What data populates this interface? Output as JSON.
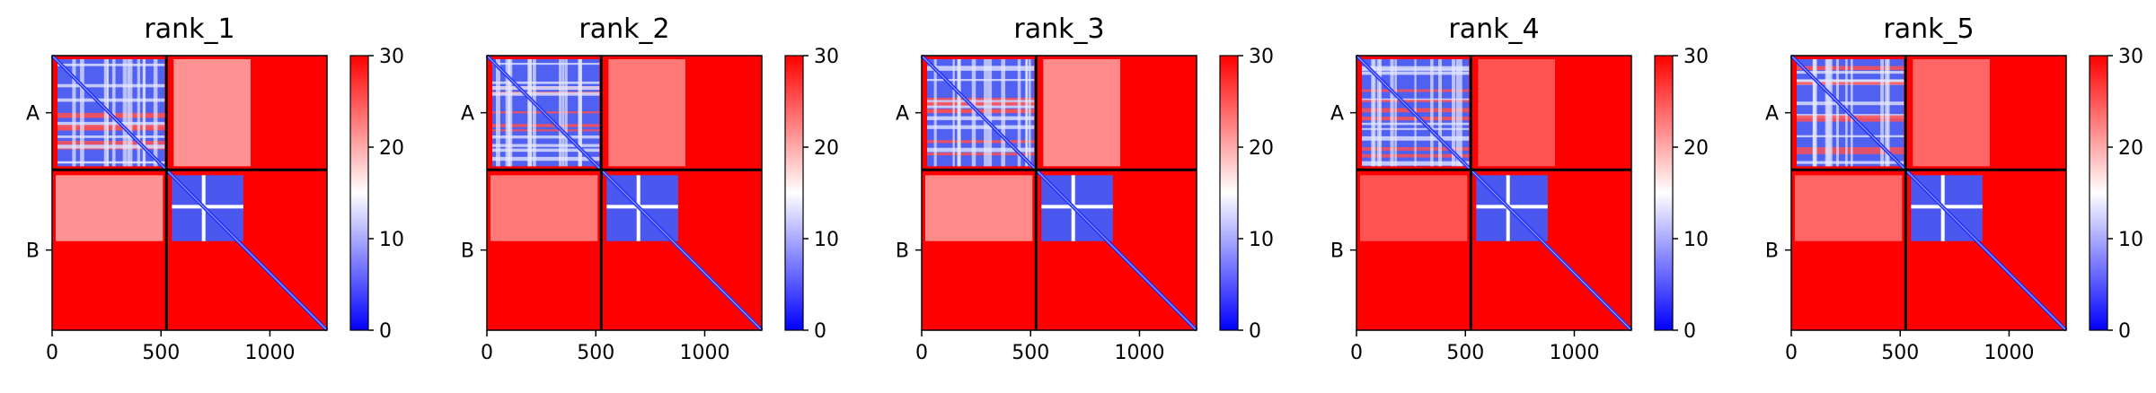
{
  "chart_data": {
    "type": "heatmap",
    "description_source": "PAE matrices for five model ranks",
    "colormap": {
      "name": "bwr",
      "low": "#0000ff",
      "mid": "#ffffff",
      "high": "#ff0000"
    },
    "color_range": [
      0,
      30
    ],
    "colorbar_ticks": [
      "0",
      "10",
      "20",
      "30"
    ],
    "x_ticks": [
      {
        "value": 0,
        "label": "0"
      },
      {
        "value": 500,
        "label": "500"
      },
      {
        "value": 1000,
        "label": "1000"
      }
    ],
    "x_range": [
      0,
      1262
    ],
    "chain_boundary": 525,
    "chains": [
      {
        "label": "A",
        "start": 0,
        "end": 525
      },
      {
        "label": "B",
        "start": 525,
        "end": 1262
      }
    ],
    "grid": false,
    "panels": [
      {
        "title": "rank_1"
      },
      {
        "title": "rank_2"
      },
      {
        "title": "rank_3"
      },
      {
        "title": "rank_4"
      },
      {
        "title": "rank_5"
      }
    ]
  }
}
